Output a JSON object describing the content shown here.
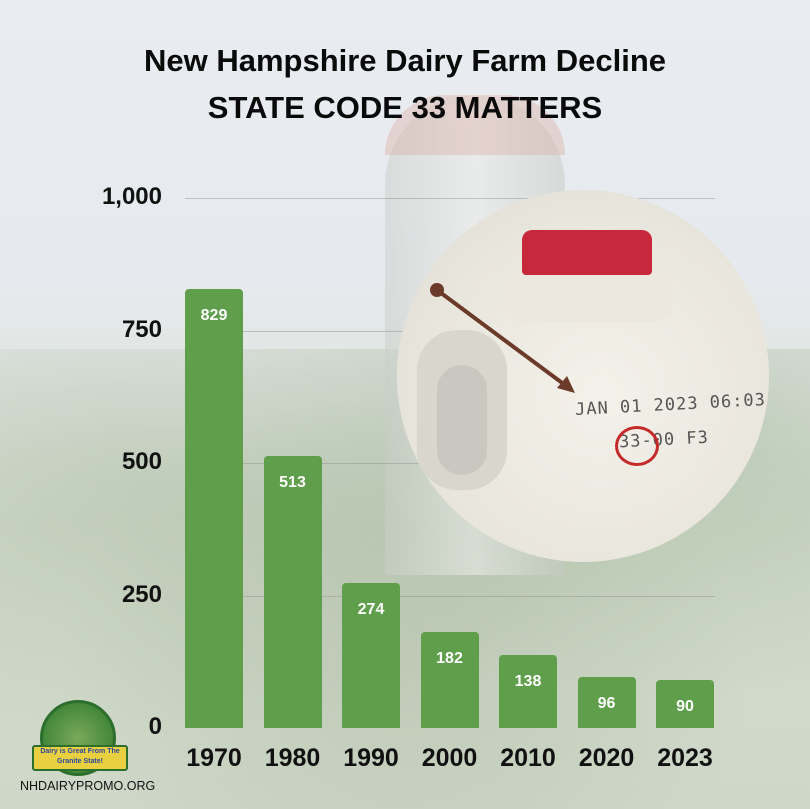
{
  "chart_data": {
    "type": "bar",
    "title": "New Hampshire Dairy Farm Decline",
    "subtitle": "STATE CODE 33 MATTERS",
    "categories": [
      "1970",
      "1980",
      "1990",
      "2000",
      "2010",
      "2020",
      "2023"
    ],
    "values": [
      829,
      513,
      274,
      182,
      138,
      96,
      90
    ],
    "data_labels": [
      "829",
      "513",
      "274",
      "182",
      "138",
      "96",
      "90"
    ],
    "yticks": [
      "0",
      "250",
      "500",
      "750",
      "1,000"
    ],
    "ylim": [
      0,
      1000
    ],
    "grid": true,
    "bar_color": "#5f9e4a"
  },
  "photo": {
    "line1": "JAN 01 2023  06:03",
    "line2": "33-00 F3",
    "highlight_color": "#c42a2a"
  },
  "logo": {
    "text_top": "NEW HAMPSHIRE GRANITE STATE DAIRY PROMOTION",
    "ribbon": "Dairy is Great From The Granite State!"
  },
  "footer": {
    "website": "NHDAIRYPROMO.ORG"
  }
}
